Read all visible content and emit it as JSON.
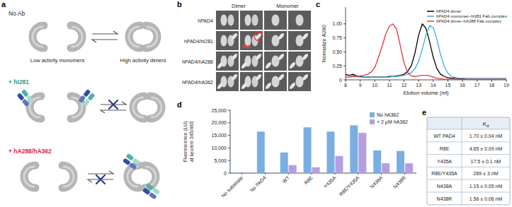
{
  "panel_labels": [
    "a",
    "b",
    "c",
    "d",
    "e"
  ],
  "diagram": {
    "conditions": [
      "No Ab",
      "+ hI281",
      "+ hA288/hA362"
    ],
    "monomer_label": "Low activity monomers",
    "dimer_label": "High activity dimers"
  },
  "micrographs": {
    "columns": [
      "Dimer",
      "Monomer"
    ],
    "rows": [
      "hPAD4",
      "hPAD4/hI281",
      "hPAD4/hA288",
      "hPAD4/hA362"
    ],
    "annotation": "Fab"
  },
  "chart_data": [
    {
      "type": "line",
      "xlabel": "Elution volume (ml)",
      "ylabel": "Normalize A280",
      "x": [
        8,
        8.25,
        8.5,
        8.75,
        9,
        9.25,
        9.5,
        9.75,
        10,
        10.25,
        10.5,
        10.75,
        11,
        11.25,
        11.5,
        11.75,
        12,
        12.25,
        12.5,
        12.75,
        13,
        13.25,
        13.5,
        13.75,
        14,
        14.25,
        14.5,
        14.75,
        15,
        15.25,
        15.5,
        15.75,
        16,
        16.25,
        16.5,
        16.75,
        17,
        17.25,
        17.5,
        17.75,
        18,
        18.25,
        18.5,
        18.75,
        19
      ],
      "series": [
        {
          "name": "hPAD4 dimer",
          "color": "#000000",
          "values": [
            0.1,
            0.08,
            0.1,
            0.07,
            0.06,
            0.05,
            0.05,
            0.05,
            0.05,
            0.05,
            0.05,
            0.05,
            0.06,
            0.06,
            0.07,
            0.08,
            0.1,
            0.15,
            0.25,
            0.48,
            0.8,
            1.0,
            0.92,
            0.68,
            0.4,
            0.2,
            0.1,
            0.06,
            0.04,
            0.03,
            0.03,
            0.02,
            0.02,
            0.02,
            0.02,
            0.02,
            0.02,
            0.02,
            0.02,
            0.02,
            0.02,
            0.02,
            0.02,
            0.02,
            0.02
          ]
        },
        {
          "name": "hPAD4 monomer–hI281 Fab complex",
          "color": "#3fa9e0",
          "values": [
            0.08,
            0.07,
            0.08,
            0.06,
            0.05,
            0.05,
            0.05,
            0.05,
            0.05,
            0.05,
            0.05,
            0.05,
            0.05,
            0.06,
            0.06,
            0.07,
            0.08,
            0.1,
            0.13,
            0.2,
            0.33,
            0.55,
            0.8,
            0.97,
            0.93,
            0.72,
            0.45,
            0.24,
            0.12,
            0.06,
            0.04,
            0.03,
            0.03,
            0.02,
            0.02,
            0.02,
            0.02,
            0.02,
            0.02,
            0.02,
            0.02,
            0.02,
            0.02,
            0.02,
            0.02
          ]
        },
        {
          "name": "hPAD4 dimer–hA288 Fab complex",
          "color": "#e8343a",
          "values": [
            0.05,
            0.05,
            0.06,
            0.06,
            0.07,
            0.08,
            0.1,
            0.14,
            0.22,
            0.4,
            0.6,
            0.82,
            0.96,
            1.0,
            0.9,
            0.6,
            0.3,
            0.13,
            0.07,
            0.06,
            0.07,
            0.08,
            0.08,
            0.07,
            0.05,
            0.03,
            0.02,
            0.01,
            0.01,
            0.01,
            0.01,
            0.01,
            0.01,
            0.01,
            0.01,
            0.01,
            0.01,
            0.01,
            0.01,
            0.01,
            0.01,
            0.01,
            0.01,
            0.01,
            0.01
          ]
        }
      ],
      "xlim": [
        8,
        19
      ],
      "xticks": [
        8,
        9,
        10,
        11,
        12,
        13,
        14,
        15,
        16,
        17,
        18,
        19
      ],
      "ylim": [
        0,
        1.3
      ],
      "yticks": [
        0,
        0.25,
        {
          "value": 0.5,
          "label": "0.50"
        },
        0.75,
        {
          "value": 1,
          "label": "1.00"
        }
      ],
      "legend": "upper right"
    },
    {
      "type": "bar",
      "ylabel": [
        "Fluorescence (LU)",
        "at λex/em 345/465"
      ],
      "categories": [
        "No substrate",
        "No PAD4",
        "WT",
        "R8E",
        "Y435A",
        "R8E/Y435A",
        "N438A",
        "N438R"
      ],
      "series": [
        {
          "name": "No hA362",
          "color": "#7aaee3",
          "values": [
            200,
            16500,
            8200,
            18200,
            16500,
            19000,
            9000,
            8800
          ]
        },
        {
          "name": "+ 2 μM hA362",
          "color": "#b49ee0",
          "values": [
            300,
            null,
            3200,
            2300,
            6800,
            16000,
            3900,
            3900
          ]
        }
      ],
      "ylim": [
        0,
        25000
      ],
      "yticks": [
        0,
        {
          "value": 5000,
          "label": "5,000"
        },
        {
          "value": 10000,
          "label": "10,000"
        },
        {
          "value": 15000,
          "label": "15,000"
        },
        {
          "value": 20000,
          "label": "20,000"
        },
        {
          "value": 25000,
          "label": "25,000"
        }
      ],
      "legend": "upper right"
    }
  ],
  "table": {
    "header": {
      "text": "K",
      "subscript": "d"
    },
    "rows": [
      [
        "WT PAD4",
        "1.70 ± 0.04 nM"
      ],
      [
        "R8E",
        "4.65 ± 0.09 nM"
      ],
      [
        "Y435A",
        "17.5 ± 0.1 nM"
      ],
      [
        "R8E/Y435A",
        "269 ± 3 nM"
      ],
      [
        "N438A",
        "1.15 ± 0.05 nM"
      ],
      [
        "N438R",
        "1.56 ± 0.06 nM"
      ]
    ]
  }
}
